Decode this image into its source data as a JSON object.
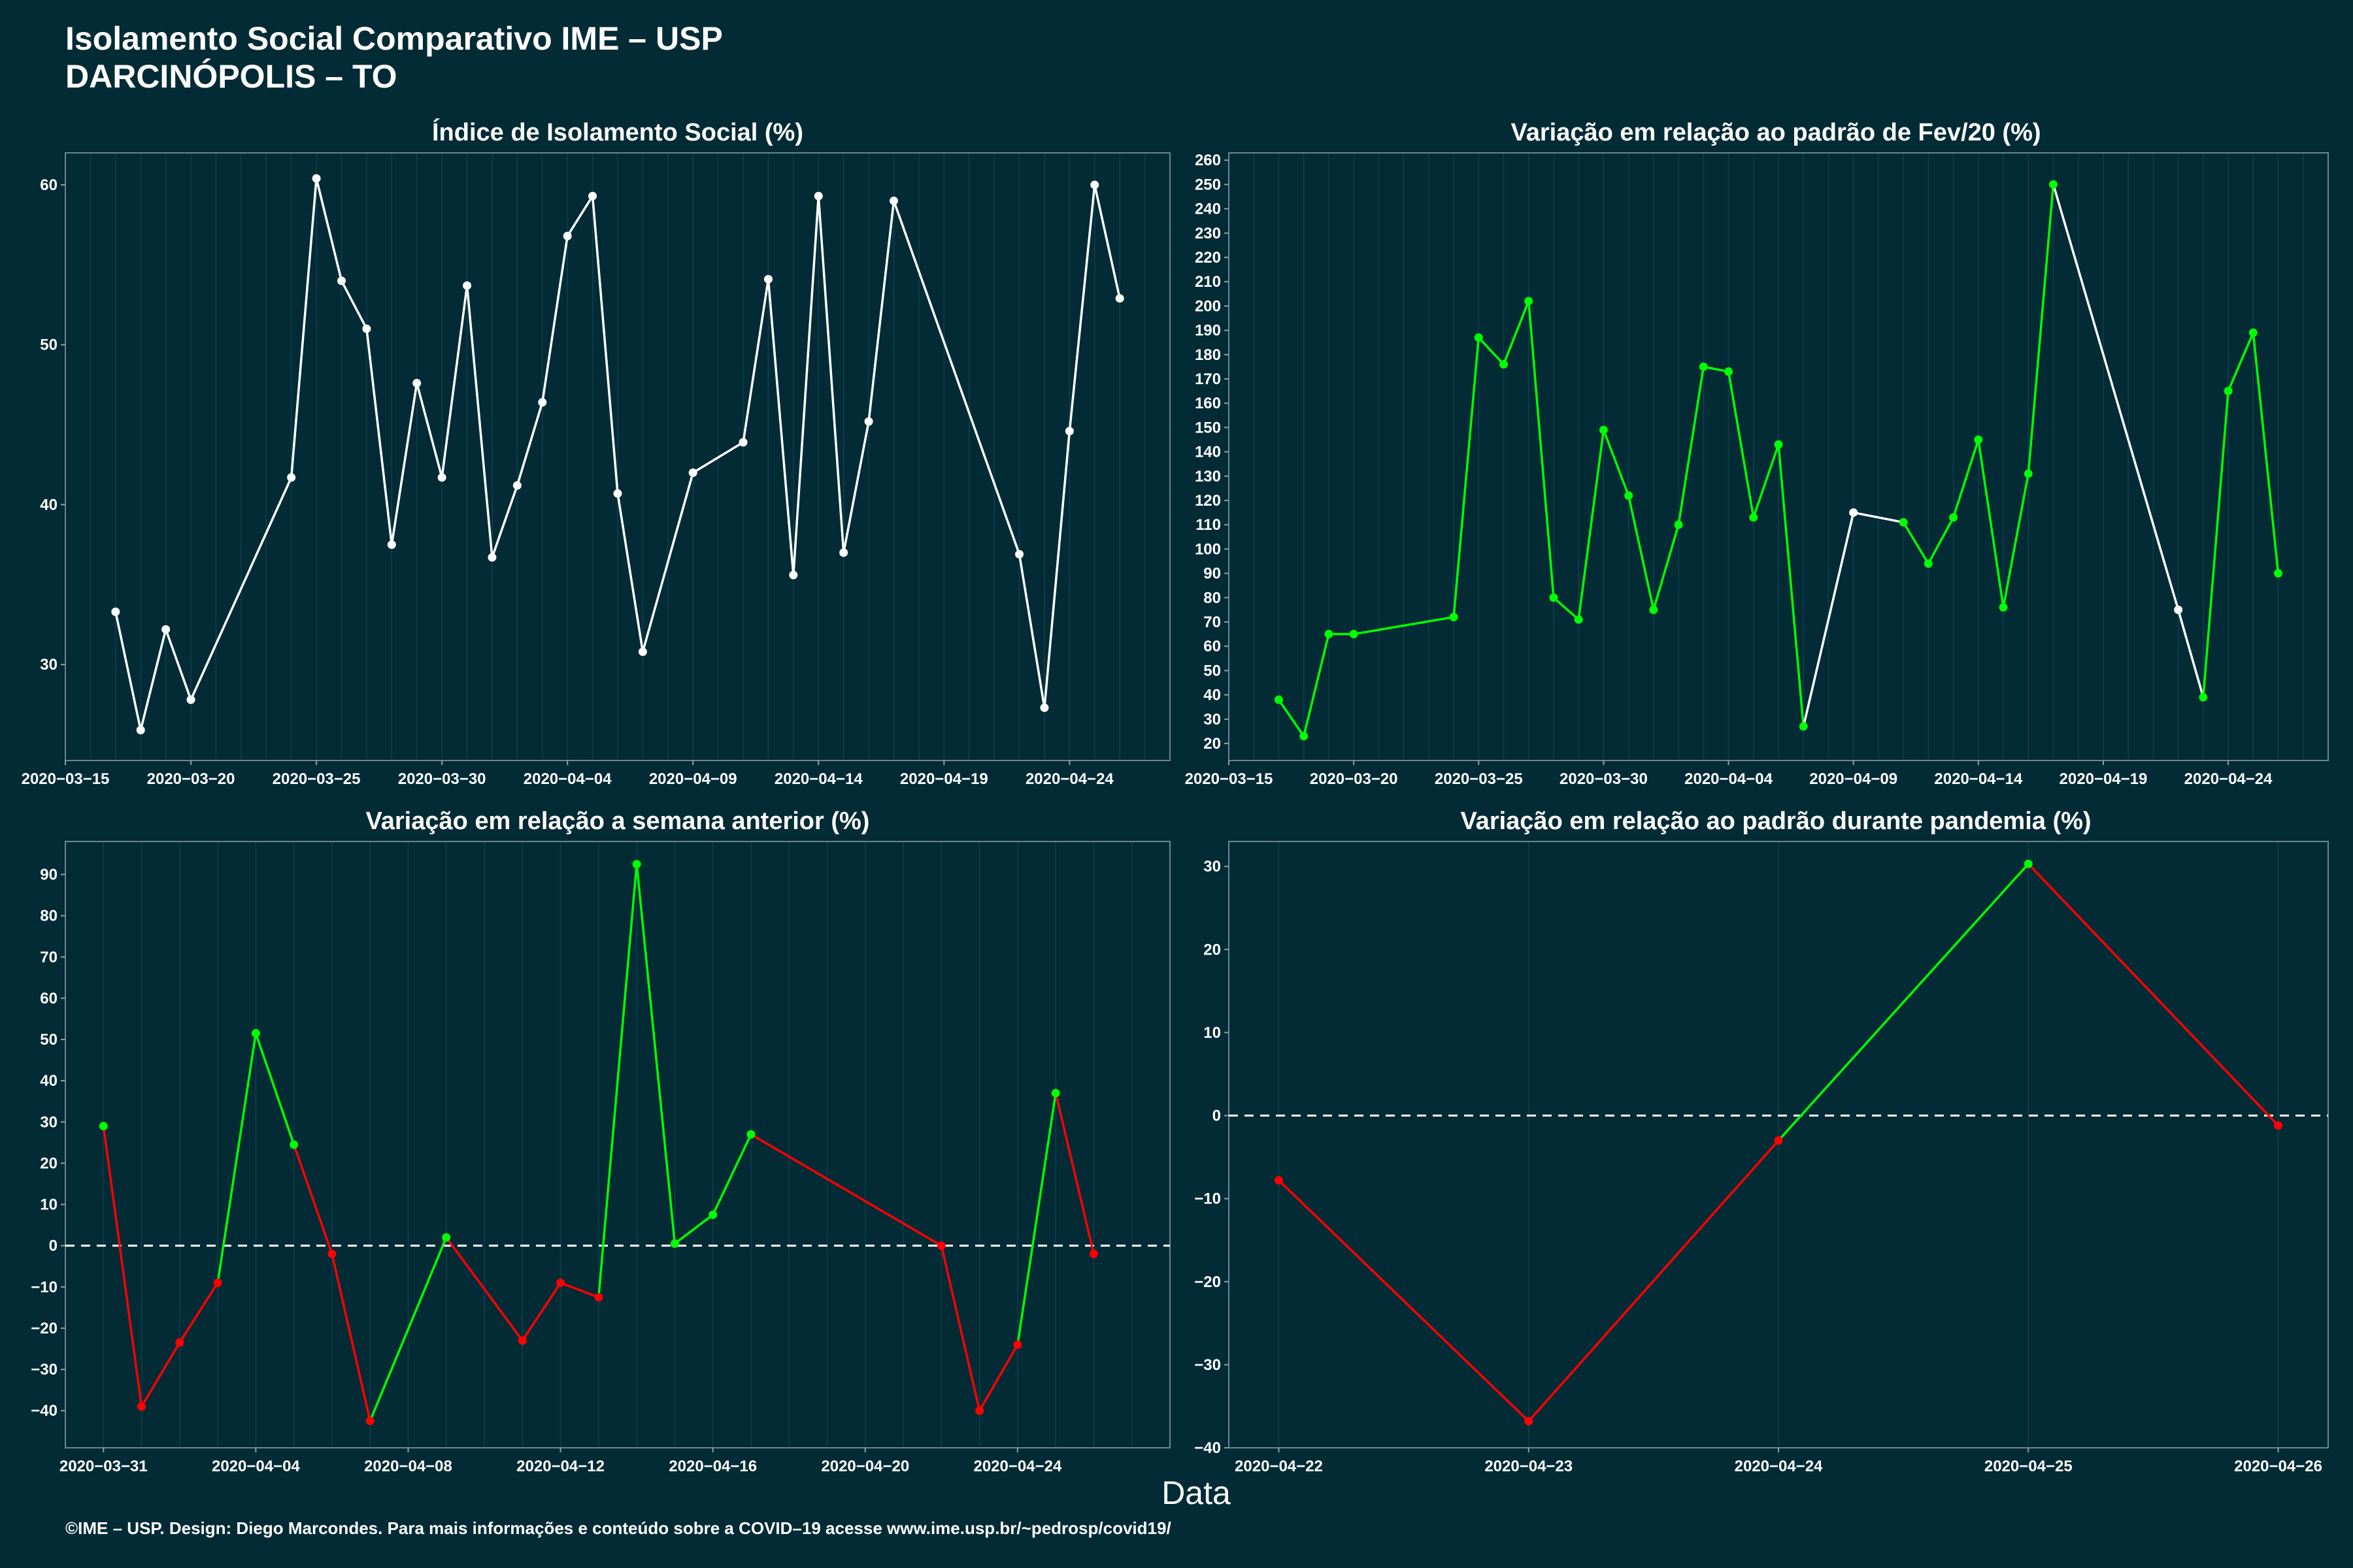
{
  "header": {
    "title": "Isolamento Social Comparativo IME – USP",
    "location": "DARCINÓPOLIS – TO"
  },
  "xaxis_label": "Data",
  "footer": "©IME – USP. Design: Diego Marcondes. Para mais informações e conteúdo sobre a COVID–19 acesse www.ime.usp.br/~pedrosp/covid19/",
  "colors": {
    "background": "#022b36",
    "white": "#ffffff",
    "green": "#00ff00",
    "red": "#ff0000"
  },
  "chart_data": [
    {
      "type": "line",
      "title": "Índice de Isolamento Social (%)",
      "ylim": [
        24,
        62
      ],
      "yticks": [
        30,
        40,
        50,
        60
      ],
      "xlim": [
        "2020-03-15",
        "2020-04-28"
      ],
      "xticks": [
        "2020-03-15",
        "2020-03-20",
        "2020-03-25",
        "2020-03-30",
        "2020-04-04",
        "2020-04-09",
        "2020-04-14",
        "2020-04-19",
        "2020-04-24"
      ],
      "points": [
        {
          "x": "2020-03-17",
          "y": 33.3,
          "c": "w"
        },
        {
          "x": "2020-03-18",
          "y": 25.9,
          "c": "w"
        },
        {
          "x": "2020-03-19",
          "y": 32.2,
          "c": "w"
        },
        {
          "x": "2020-03-20",
          "y": 27.8,
          "c": "w"
        },
        {
          "x": "2020-03-24",
          "y": 41.7,
          "c": "w"
        },
        {
          "x": "2020-03-25",
          "y": 60.4,
          "c": "w"
        },
        {
          "x": "2020-03-26",
          "y": 54.0,
          "c": "w"
        },
        {
          "x": "2020-03-27",
          "y": 51.0,
          "c": "w"
        },
        {
          "x": "2020-03-28",
          "y": 37.5,
          "c": "w"
        },
        {
          "x": "2020-03-29",
          "y": 47.6,
          "c": "w"
        },
        {
          "x": "2020-03-30",
          "y": 41.7,
          "c": "w"
        },
        {
          "x": "2020-03-31",
          "y": 53.7,
          "c": "w"
        },
        {
          "x": "2020-04-01",
          "y": 36.7,
          "c": "w"
        },
        {
          "x": "2020-04-02",
          "y": 41.2,
          "c": "w"
        },
        {
          "x": "2020-04-03",
          "y": 46.4,
          "c": "w"
        },
        {
          "x": "2020-04-04",
          "y": 56.8,
          "c": "w"
        },
        {
          "x": "2020-04-05",
          "y": 59.3,
          "c": "w"
        },
        {
          "x": "2020-04-06",
          "y": 40.7,
          "c": "w"
        },
        {
          "x": "2020-04-07",
          "y": 30.8,
          "c": "w"
        },
        {
          "x": "2020-04-09",
          "y": 42.0,
          "c": "w"
        },
        {
          "x": "2020-04-11",
          "y": 43.9,
          "c": "w"
        },
        {
          "x": "2020-04-12",
          "y": 54.1,
          "c": "w"
        },
        {
          "x": "2020-04-13",
          "y": 35.6,
          "c": "w"
        },
        {
          "x": "2020-04-14",
          "y": 59.3,
          "c": "w"
        },
        {
          "x": "2020-04-15",
          "y": 37.0,
          "c": "w"
        },
        {
          "x": "2020-04-16",
          "y": 45.2,
          "c": "w"
        },
        {
          "x": "2020-04-17",
          "y": 59.0,
          "c": "w"
        },
        {
          "x": "2020-04-22",
          "y": 36.9,
          "c": "w"
        },
        {
          "x": "2020-04-23",
          "y": 27.3,
          "c": "w"
        },
        {
          "x": "2020-04-24",
          "y": 44.6,
          "c": "w"
        },
        {
          "x": "2020-04-25",
          "y": 60.0,
          "c": "w"
        },
        {
          "x": "2020-04-26",
          "y": 52.9,
          "c": "w"
        }
      ]
    },
    {
      "type": "line",
      "title": "Variação em relação ao padrão de Fev/20 (%)",
      "ylim": [
        13,
        263
      ],
      "yticks": [
        20,
        30,
        40,
        50,
        60,
        70,
        80,
        90,
        100,
        110,
        120,
        130,
        140,
        150,
        160,
        170,
        180,
        190,
        200,
        210,
        220,
        230,
        240,
        250,
        260
      ],
      "xlim": [
        "2020-03-15",
        "2020-04-28"
      ],
      "xticks": [
        "2020-03-15",
        "2020-03-20",
        "2020-03-25",
        "2020-03-30",
        "2020-04-04",
        "2020-04-09",
        "2020-04-14",
        "2020-04-19",
        "2020-04-24"
      ],
      "points": [
        {
          "x": "2020-03-17",
          "y": 38,
          "c": "g"
        },
        {
          "x": "2020-03-18",
          "y": 23,
          "c": "g"
        },
        {
          "x": "2020-03-19",
          "y": 65,
          "c": "g"
        },
        {
          "x": "2020-03-20",
          "y": 65,
          "c": "g"
        },
        {
          "x": "2020-03-24",
          "y": 72,
          "c": "g"
        },
        {
          "x": "2020-03-25",
          "y": 187,
          "c": "g"
        },
        {
          "x": "2020-03-26",
          "y": 176,
          "c": "g"
        },
        {
          "x": "2020-03-27",
          "y": 202,
          "c": "g"
        },
        {
          "x": "2020-03-28",
          "y": 80,
          "c": "g"
        },
        {
          "x": "2020-03-29",
          "y": 71,
          "c": "g"
        },
        {
          "x": "2020-03-30",
          "y": 149,
          "c": "g"
        },
        {
          "x": "2020-03-31",
          "y": 122,
          "c": "g"
        },
        {
          "x": "2020-04-01",
          "y": 75,
          "c": "g"
        },
        {
          "x": "2020-04-02",
          "y": 110,
          "c": "g"
        },
        {
          "x": "2020-04-03",
          "y": 175,
          "c": "g"
        },
        {
          "x": "2020-04-04",
          "y": 173,
          "c": "g"
        },
        {
          "x": "2020-04-05",
          "y": 113,
          "c": "g"
        },
        {
          "x": "2020-04-06",
          "y": 143,
          "c": "g"
        },
        {
          "x": "2020-04-07",
          "y": 27,
          "c": "g"
        },
        {
          "x": "2020-04-09",
          "y": 115,
          "c": "w"
        },
        {
          "x": "2020-04-11",
          "y": 111,
          "c": "g"
        },
        {
          "x": "2020-04-12",
          "y": 94,
          "c": "g"
        },
        {
          "x": "2020-04-13",
          "y": 113,
          "c": "g"
        },
        {
          "x": "2020-04-14",
          "y": 145,
          "c": "g"
        },
        {
          "x": "2020-04-15",
          "y": 76,
          "c": "g"
        },
        {
          "x": "2020-04-16",
          "y": 131,
          "c": "g"
        },
        {
          "x": "2020-04-17",
          "y": 250,
          "c": "g"
        },
        {
          "x": "2020-04-22",
          "y": 75,
          "c": "w"
        },
        {
          "x": "2020-04-23",
          "y": 39,
          "c": "g"
        },
        {
          "x": "2020-04-24",
          "y": 165,
          "c": "g"
        },
        {
          "x": "2020-04-25",
          "y": 189,
          "c": "g"
        },
        {
          "x": "2020-04-26",
          "y": 90,
          "c": "g"
        }
      ]
    },
    {
      "type": "line",
      "title": "Variação em relação a semana anterior (%)",
      "ylim": [
        -49,
        98
      ],
      "yticks": [
        -40,
        -30,
        -20,
        -10,
        0,
        10,
        20,
        30,
        40,
        50,
        60,
        70,
        80,
        90
      ],
      "reference_line": 0,
      "xlim": [
        "2020-03-30",
        "2020-04-28"
      ],
      "xticks": [
        "2020-03-31",
        "2020-04-04",
        "2020-04-08",
        "2020-04-12",
        "2020-04-16",
        "2020-04-20",
        "2020-04-24"
      ],
      "points": [
        {
          "x": "2020-03-31",
          "y": 29,
          "c": "g"
        },
        {
          "x": "2020-04-01",
          "y": -39,
          "c": "r"
        },
        {
          "x": "2020-04-02",
          "y": -23.5,
          "c": "r"
        },
        {
          "x": "2020-04-03",
          "y": -9,
          "c": "r"
        },
        {
          "x": "2020-04-04",
          "y": 51.5,
          "c": "g"
        },
        {
          "x": "2020-04-05",
          "y": 24.5,
          "c": "g"
        },
        {
          "x": "2020-04-06",
          "y": -2,
          "c": "r"
        },
        {
          "x": "2020-04-07",
          "y": -42.5,
          "c": "r"
        },
        {
          "x": "2020-04-09",
          "y": 2,
          "c": "g"
        },
        {
          "x": "2020-04-11",
          "y": -23,
          "c": "r"
        },
        {
          "x": "2020-04-12",
          "y": -9,
          "c": "r"
        },
        {
          "x": "2020-04-13",
          "y": -12.5,
          "c": "r"
        },
        {
          "x": "2020-04-14",
          "y": 92.5,
          "c": "g"
        },
        {
          "x": "2020-04-15",
          "y": 0.5,
          "c": "g"
        },
        {
          "x": "2020-04-16",
          "y": 7.5,
          "c": "g"
        },
        {
          "x": "2020-04-17",
          "y": 27,
          "c": "g"
        },
        {
          "x": "2020-04-22",
          "y": 0,
          "c": "r"
        },
        {
          "x": "2020-04-23",
          "y": -40,
          "c": "r"
        },
        {
          "x": "2020-04-24",
          "y": -24,
          "c": "r"
        },
        {
          "x": "2020-04-25",
          "y": 37,
          "c": "g"
        },
        {
          "x": "2020-04-26",
          "y": -2,
          "c": "r"
        }
      ]
    },
    {
      "type": "line",
      "title": "Variação em relação ao padrão durante pandemia (%)",
      "ylim": [
        -40,
        33
      ],
      "yticks": [
        -40,
        -30,
        -20,
        -10,
        0,
        10,
        20,
        30
      ],
      "reference_line": 0,
      "xlim": [
        "2020-04-21.8",
        "2020-04-26.2"
      ],
      "xticks": [
        "2020-04-22",
        "2020-04-23",
        "2020-04-24",
        "2020-04-25",
        "2020-04-26"
      ],
      "points": [
        {
          "x": "2020-04-22",
          "y": -7.8,
          "c": "r"
        },
        {
          "x": "2020-04-23",
          "y": -36.8,
          "c": "r"
        },
        {
          "x": "2020-04-24",
          "y": -3.0,
          "c": "r"
        },
        {
          "x": "2020-04-25",
          "y": 30.3,
          "c": "g"
        },
        {
          "x": "2020-04-26",
          "y": -1.2,
          "c": "r"
        }
      ]
    }
  ]
}
